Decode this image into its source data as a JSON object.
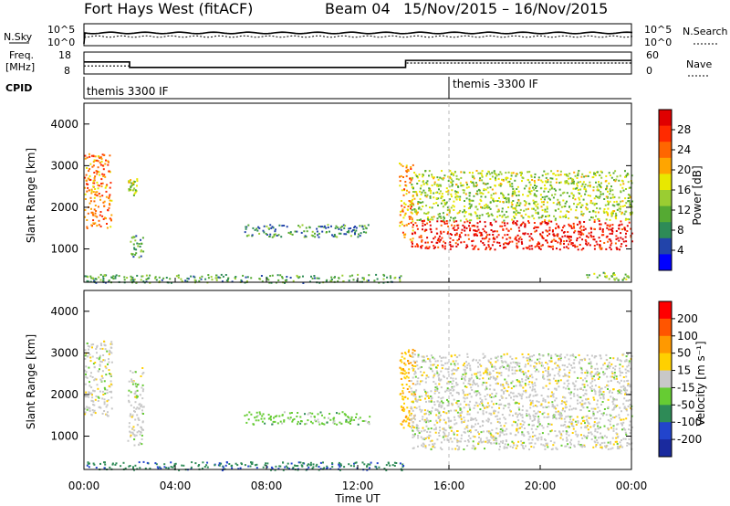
{
  "header": {
    "station": "Fort Hays West (fitACF)",
    "beam": "Beam 04",
    "date_range": "15/Nov/2015 – 16/Nov/2015"
  },
  "noise_panel": {
    "left_label": "N.Sky",
    "right_label": "N.Search",
    "left_ticks": [
      "10^5",
      "10^0"
    ],
    "right_ticks": [
      "10^5",
      "10^0"
    ]
  },
  "freq_panel": {
    "left_label_1": "Freq.",
    "left_label_2": "[MHz]",
    "right_label": "Nave",
    "left_ticks": [
      "18",
      "8"
    ],
    "right_ticks": [
      "60",
      "0"
    ],
    "freq_steps": [
      [
        0,
        13.5
      ],
      [
        2.0,
        11.0
      ],
      [
        14.1,
        14.2
      ],
      [
        24.0,
        14.2
      ]
    ],
    "nave_steps": [
      [
        0,
        22
      ],
      [
        2.0,
        18
      ],
      [
        14.1,
        30
      ],
      [
        24.0,
        30
      ]
    ]
  },
  "cpid_panel": {
    "label": "CPID",
    "segments": [
      {
        "start_hour": 0,
        "label": "themis 3300 IF"
      },
      {
        "start_hour": 16,
        "label": "themis -3300 IF"
      }
    ]
  },
  "power_panel": {
    "ylabel": "Slant Range [km]",
    "colorbar_label": "Power [dB]",
    "colorbar_ticks": [
      "28",
      "24",
      "20",
      "16",
      "12",
      "8",
      "4"
    ],
    "colors": [
      "#0000ff",
      "#2244aa",
      "#2e8b57",
      "#55aa33",
      "#9acd32",
      "#e8e800",
      "#ffa500",
      "#ff6600",
      "#ff2a00",
      "#e00000"
    ]
  },
  "velocity_panel": {
    "ylabel": "Slant Range [km]",
    "colorbar_label": "Velocity [m s⁻¹]",
    "colorbar_ticks": [
      "200",
      "100",
      "50",
      "15",
      "-15",
      "-50",
      "-100",
      "-200"
    ],
    "colors": [
      "#1a2a9e",
      "#2244cc",
      "#2e8b57",
      "#66cc33",
      "#c8c8c8",
      "#ffd000",
      "#ff9900",
      "#ff5500",
      "#ff0000"
    ]
  },
  "time_axis": {
    "xlabel": "Time UT",
    "ticks": [
      "00:00",
      "04:00",
      "08:00",
      "12:00",
      "16:00",
      "20:00",
      "00:00"
    ]
  },
  "chart_data": [
    {
      "type": "heatmap",
      "title": "Power",
      "xlabel": "Time UT",
      "ylabel": "Slant Range [km]",
      "xlim": [
        0,
        24
      ],
      "ylim": [
        200,
        4500
      ],
      "yticks": [
        1000,
        2000,
        3000,
        4000
      ],
      "colorbar": {
        "label": "Power [dB]",
        "range": [
          0,
          30
        ]
      },
      "regions": [
        {
          "t0": 0.0,
          "t1": 1.2,
          "r0": 1500,
          "r1": 3300,
          "value": 22
        },
        {
          "t0": 1.9,
          "t1": 2.3,
          "r0": 2300,
          "r1": 2700,
          "value": 14
        },
        {
          "t0": 2.0,
          "t1": 2.6,
          "r0": 800,
          "r1": 1400,
          "value": 10
        },
        {
          "t0": 7.0,
          "t1": 12.5,
          "r0": 1300,
          "r1": 1600,
          "value": 8
        },
        {
          "t0": 0.0,
          "t1": 14.0,
          "r0": 200,
          "r1": 400,
          "value": 10
        },
        {
          "t0": 13.8,
          "t1": 14.4,
          "r0": 1200,
          "r1": 3100,
          "value": 20
        },
        {
          "t0": 14.3,
          "t1": 24.0,
          "r0": 1000,
          "r1": 1700,
          "value": 28
        },
        {
          "t0": 14.3,
          "t1": 24.0,
          "r0": 1700,
          "r1": 2900,
          "value": 14
        },
        {
          "t0": 22.0,
          "t1": 24.0,
          "r0": 250,
          "r1": 450,
          "value": 12
        }
      ]
    },
    {
      "type": "heatmap",
      "title": "Velocity",
      "xlabel": "Time UT",
      "ylabel": "Slant Range [km]",
      "xlim": [
        0,
        24
      ],
      "ylim": [
        200,
        4500
      ],
      "yticks": [
        1000,
        2000,
        3000,
        4000
      ],
      "colorbar": {
        "label": "Velocity [m s⁻¹]",
        "range": [
          -200,
          200
        ]
      },
      "regions": [
        {
          "t0": 0.0,
          "t1": 1.2,
          "r0": 1500,
          "r1": 3300,
          "value": 0
        },
        {
          "t0": 1.9,
          "t1": 2.6,
          "r0": 800,
          "r1": 2700,
          "value": 0
        },
        {
          "t0": 7.0,
          "t1": 12.5,
          "r0": 1300,
          "r1": 1600,
          "value": -40
        },
        {
          "t0": 0.0,
          "t1": 14.0,
          "r0": 200,
          "r1": 400,
          "value": -100
        },
        {
          "t0": 13.8,
          "t1": 14.5,
          "r0": 1200,
          "r1": 3100,
          "value": 60
        },
        {
          "t0": 14.3,
          "t1": 24.0,
          "r0": 700,
          "r1": 2300,
          "value": 0
        },
        {
          "t0": 14.3,
          "t1": 24.0,
          "r0": 2300,
          "r1": 3000,
          "value": 0
        }
      ]
    }
  ]
}
